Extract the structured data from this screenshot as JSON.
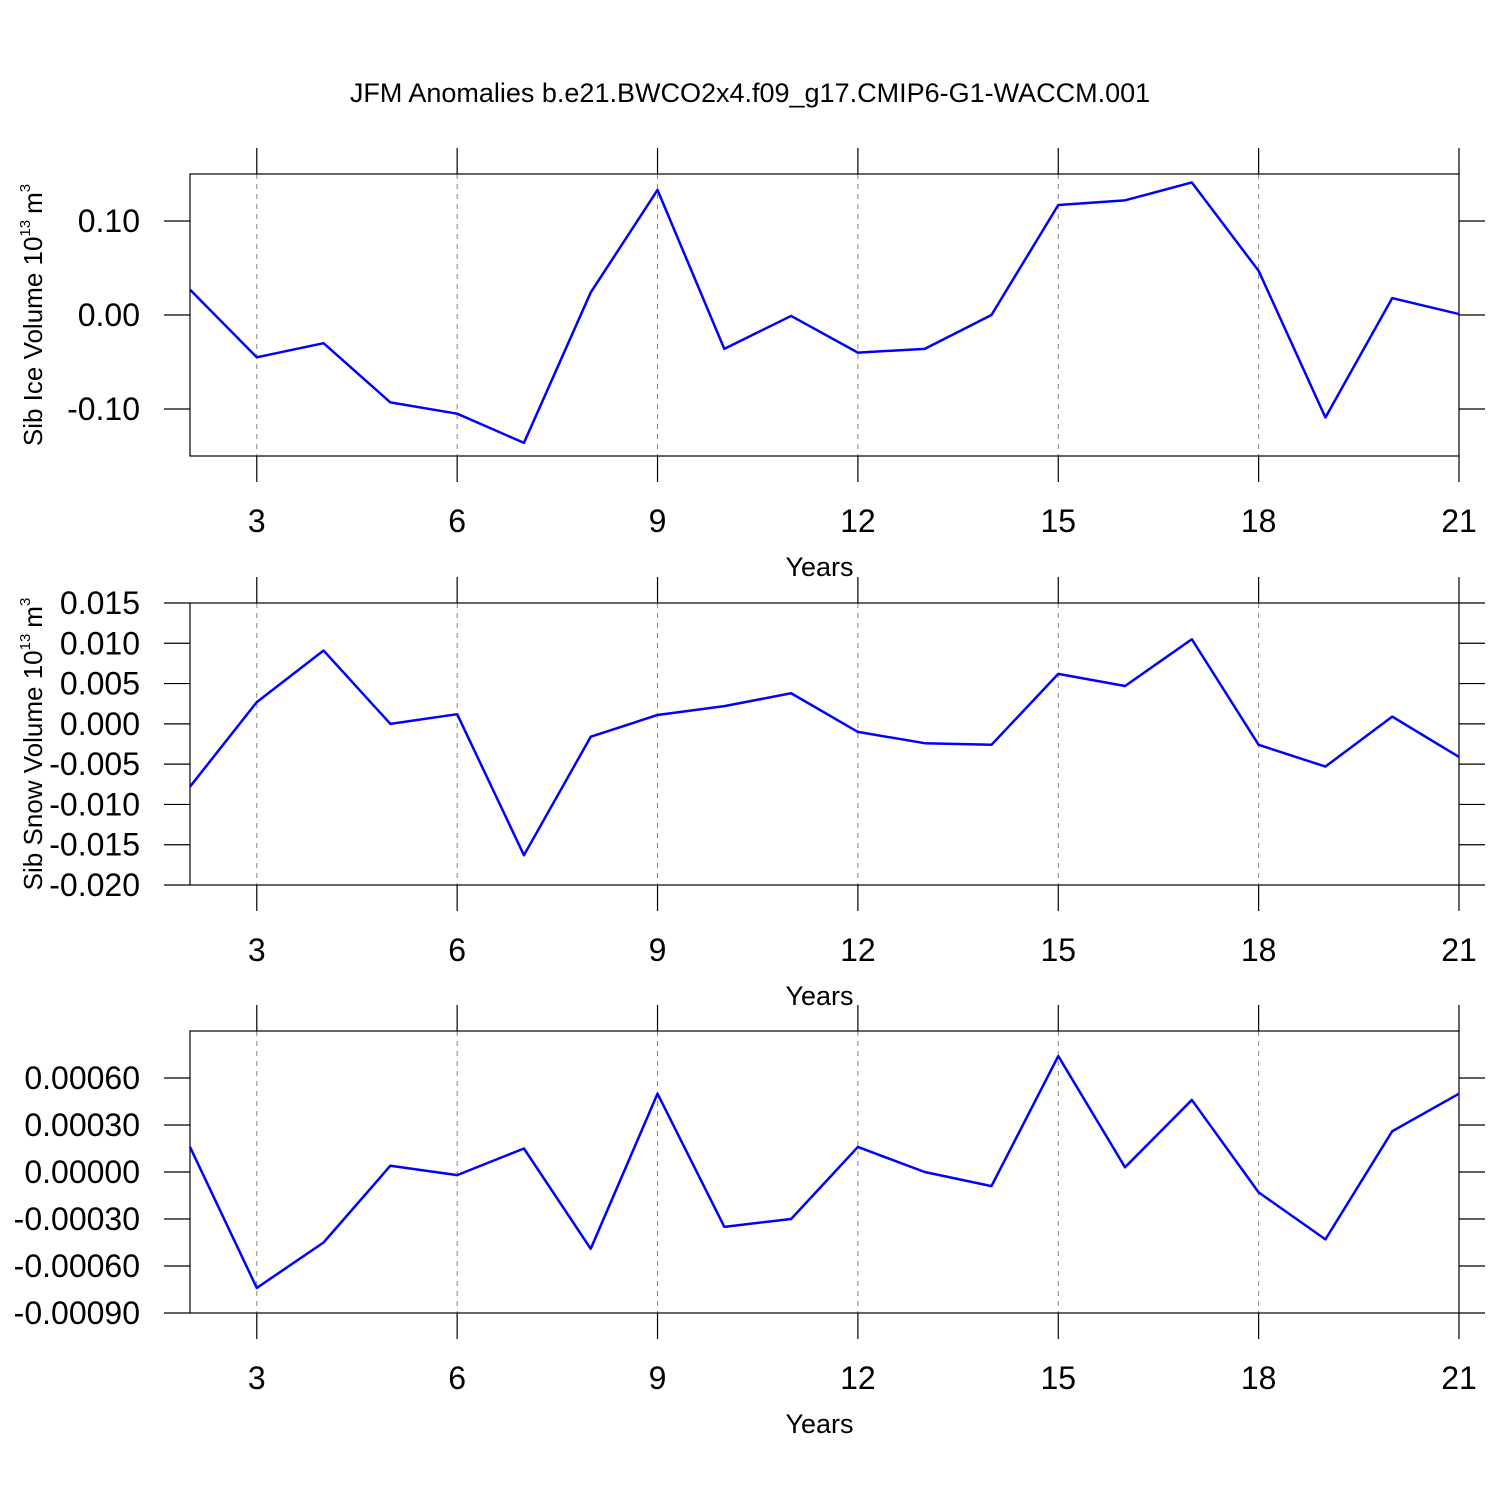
{
  "chart_data": [
    {
      "type": "line",
      "title": "JFM Anomalies b.e21.BWCO2x4.f09_g17.CMIP6-G1-WACCM.001",
      "ylabel_parts": [
        "Sib Ice Volume 10",
        "13",
        "m",
        "3"
      ],
      "xlabel": "Years",
      "x": [
        2,
        3,
        4,
        5,
        6,
        7,
        8,
        9,
        10,
        11,
        12,
        13,
        14,
        15,
        16,
        17,
        18,
        19,
        20,
        21
      ],
      "series": [
        {
          "color": "#0000ff",
          "values": [
            0.027,
            -0.045,
            -0.03,
            -0.093,
            -0.105,
            -0.136,
            0.024,
            0.133,
            -0.036,
            -0.001,
            -0.04,
            -0.036,
            0.0,
            0.117,
            0.122,
            0.141,
            0.047,
            -0.109,
            0.018,
            0.001
          ]
        }
      ],
      "xlim": [
        2,
        21
      ],
      "xticks": [
        3,
        6,
        9,
        12,
        15,
        18,
        21
      ],
      "ylim": [
        -0.15,
        0.15
      ],
      "yticks": [
        {
          "value": 0.1,
          "label": "0.10"
        },
        {
          "value": 0,
          "label": "0.00"
        },
        {
          "value": -0.1,
          "label": "-0.10"
        }
      ],
      "xgrid": true
    },
    {
      "type": "line",
      "ylabel_parts": [
        "Sib Snow Volume 10",
        "13",
        "m",
        "3"
      ],
      "xlabel": "Years",
      "x": [
        2,
        3,
        4,
        5,
        6,
        7,
        8,
        9,
        10,
        11,
        12,
        13,
        14,
        15,
        16,
        17,
        18,
        19,
        20,
        21
      ],
      "series": [
        {
          "color": "#0000ff",
          "values": [
            -0.0078,
            0.0027,
            0.0091,
            0.0,
            0.0012,
            -0.0163,
            -0.0016,
            0.0011,
            0.0022,
            0.0038,
            -0.001,
            -0.0024,
            -0.0026,
            0.0062,
            0.0047,
            0.0105,
            -0.0026,
            -0.0053,
            0.0009,
            -0.0041
          ]
        }
      ],
      "xlim": [
        2,
        21
      ],
      "xticks": [
        3,
        6,
        9,
        12,
        15,
        18,
        21
      ],
      "ylim": [
        -0.02,
        0.015
      ],
      "yticks": [
        {
          "value": 0.015,
          "label": "0.015"
        },
        {
          "value": 0.01,
          "label": "0.010"
        },
        {
          "value": 0.005,
          "label": "0.005"
        },
        {
          "value": 0,
          "label": "0.000"
        },
        {
          "value": -0.005,
          "label": "-0.005"
        },
        {
          "value": -0.01,
          "label": "-0.010"
        },
        {
          "value": -0.015,
          "label": "-0.015"
        },
        {
          "value": -0.02,
          "label": "-0.020"
        }
      ],
      "xgrid": true
    },
    {
      "type": "line",
      "xlabel": "Years",
      "x": [
        2,
        3,
        4,
        5,
        6,
        7,
        8,
        9,
        10,
        11,
        12,
        13,
        14,
        15,
        16,
        17,
        18,
        19,
        20,
        21
      ],
      "series": [
        {
          "color": "#0000ff",
          "values": [
            0.00016,
            -0.00074,
            -0.00045,
            4e-05,
            -2e-05,
            0.00015,
            -0.00049,
            0.0005,
            -0.00035,
            -0.0003,
            0.00016,
            0.0,
            -9e-05,
            0.00074,
            3e-05,
            0.00046,
            -0.00013,
            -0.00043,
            0.00026,
            0.0005
          ]
        }
      ],
      "xlim": [
        2,
        21
      ],
      "xticks": [
        3,
        6,
        9,
        12,
        15,
        18,
        21
      ],
      "ylim": [
        -0.0009,
        0.0009
      ],
      "yticks": [
        {
          "value": 0.0006,
          "label": "0.00060"
        },
        {
          "value": 0.0003,
          "label": "0.00030"
        },
        {
          "value": 0,
          "label": "0.00000"
        },
        {
          "value": -0.0003,
          "label": "-0.00030"
        },
        {
          "value": -0.0006,
          "label": "-0.00060"
        },
        {
          "value": -0.0009,
          "label": "-0.00090"
        }
      ],
      "xgrid": true
    }
  ]
}
